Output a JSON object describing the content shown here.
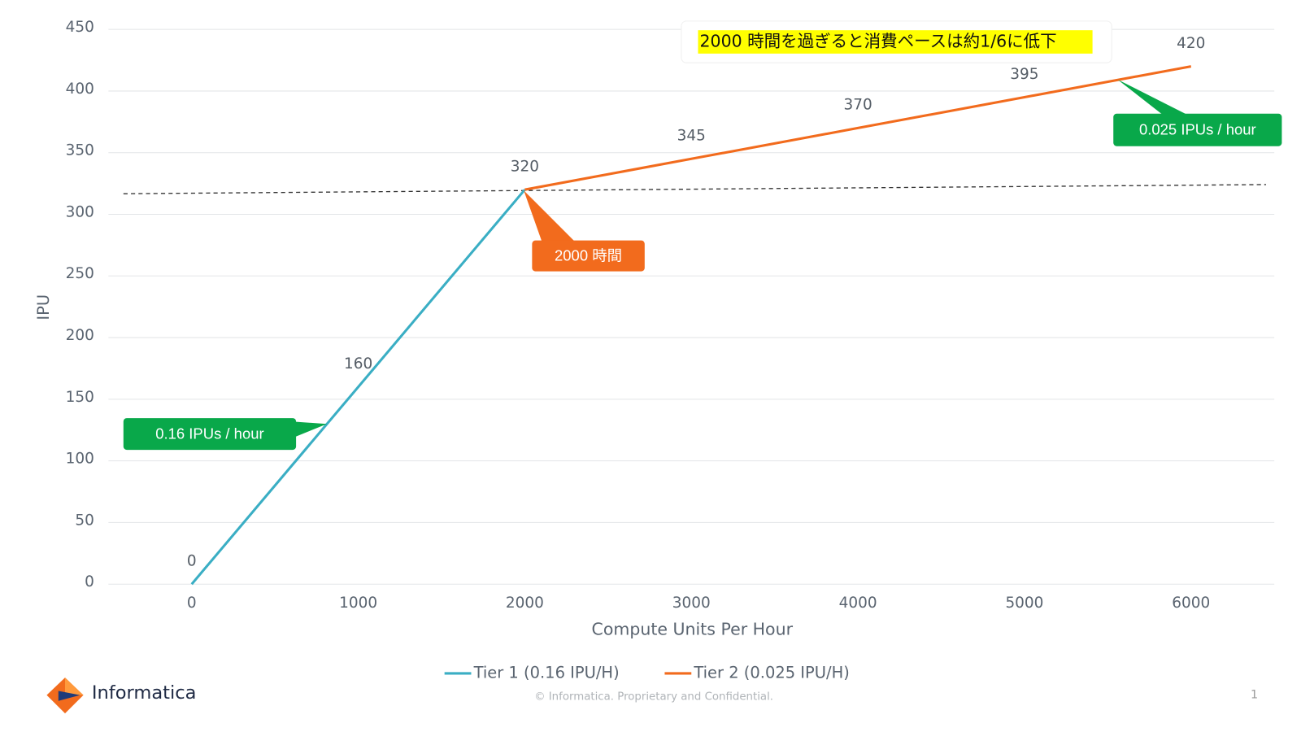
{
  "chart_data": {
    "type": "line",
    "y_label": "IPU",
    "x_label": "Compute Units Per Hour",
    "xlim": [
      -500,
      6500
    ],
    "ylim": [
      0,
      450
    ],
    "xticks": [
      0,
      1000,
      2000,
      3000,
      4000,
      5000,
      6000
    ],
    "yticks": [
      0,
      50,
      100,
      150,
      200,
      250,
      300,
      350,
      400,
      450
    ],
    "grid": true,
    "legend": "bottom",
    "series": [
      {
        "name": "Tier 1 (0.16 IPU/H)",
        "color": "#3aaec4",
        "x": [
          0,
          1000,
          2000
        ],
        "values": [
          0,
          160,
          320
        ]
      },
      {
        "name": "Tier 2 (0.025 IPU/H)",
        "color": "#f26b1d",
        "x": [
          2000,
          3000,
          4000,
          5000,
          6000
        ],
        "values": [
          320,
          345,
          370,
          395,
          420
        ]
      }
    ],
    "annotations": [
      "2000 時間を過ぎると消費ペースは約1/6に低下",
      "2000 時間",
      "0.025 IPUs / hour",
      "0.16 IPUs / hour"
    ]
  },
  "footer": {
    "brand": "Informatica",
    "copyright": "© Informatica. Proprietary and Confidential.",
    "page": "1"
  }
}
